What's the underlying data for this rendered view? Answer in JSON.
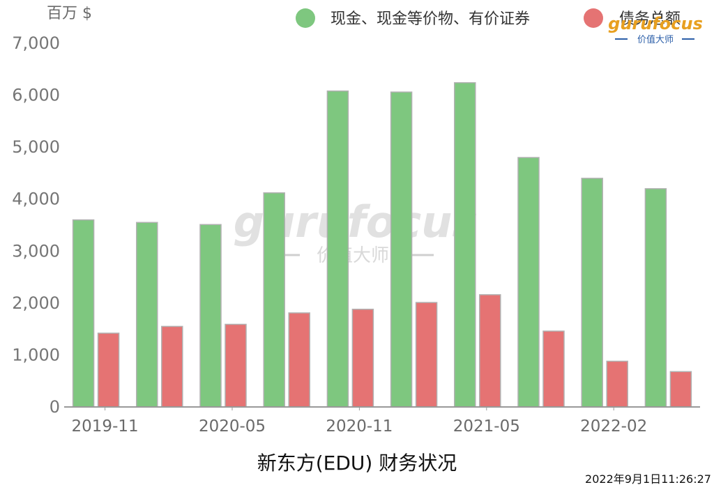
{
  "chart_data": {
    "type": "bar",
    "title": "新东方(EDU) 财务状况",
    "unit_label": "百万 $",
    "timestamp": "2022年9月1日11:26:27",
    "x_tick_labels": [
      "2019-11",
      "2020-05",
      "2020-11",
      "2021-05",
      "2022-02"
    ],
    "ylim": [
      0,
      7000
    ],
    "y_ticks": [
      0,
      1000,
      2000,
      3000,
      4000,
      5000,
      6000,
      7000
    ],
    "y_tick_labels": [
      "0",
      "1,000",
      "2,000",
      "3,000",
      "4,000",
      "5,000",
      "6,000",
      "7,000"
    ],
    "grid": false,
    "legend_position": "top-right",
    "group_count": 10,
    "series": [
      {
        "name": "现金、现金等价物、有价证券",
        "color": "#7ec77f",
        "values": [
          3600,
          3550,
          3510,
          4120,
          6080,
          6060,
          6240,
          4800,
          4400,
          4200
        ]
      },
      {
        "name": "债务总额",
        "color": "#e57373",
        "values": [
          1420,
          1550,
          1590,
          1810,
          1880,
          2010,
          2160,
          1460,
          880,
          680
        ]
      }
    ]
  },
  "watermark": {
    "brand": "gurufocus",
    "tagline": "价值大师"
  },
  "logo": {
    "brand": "gurufocus",
    "tagline": "价值大师"
  }
}
